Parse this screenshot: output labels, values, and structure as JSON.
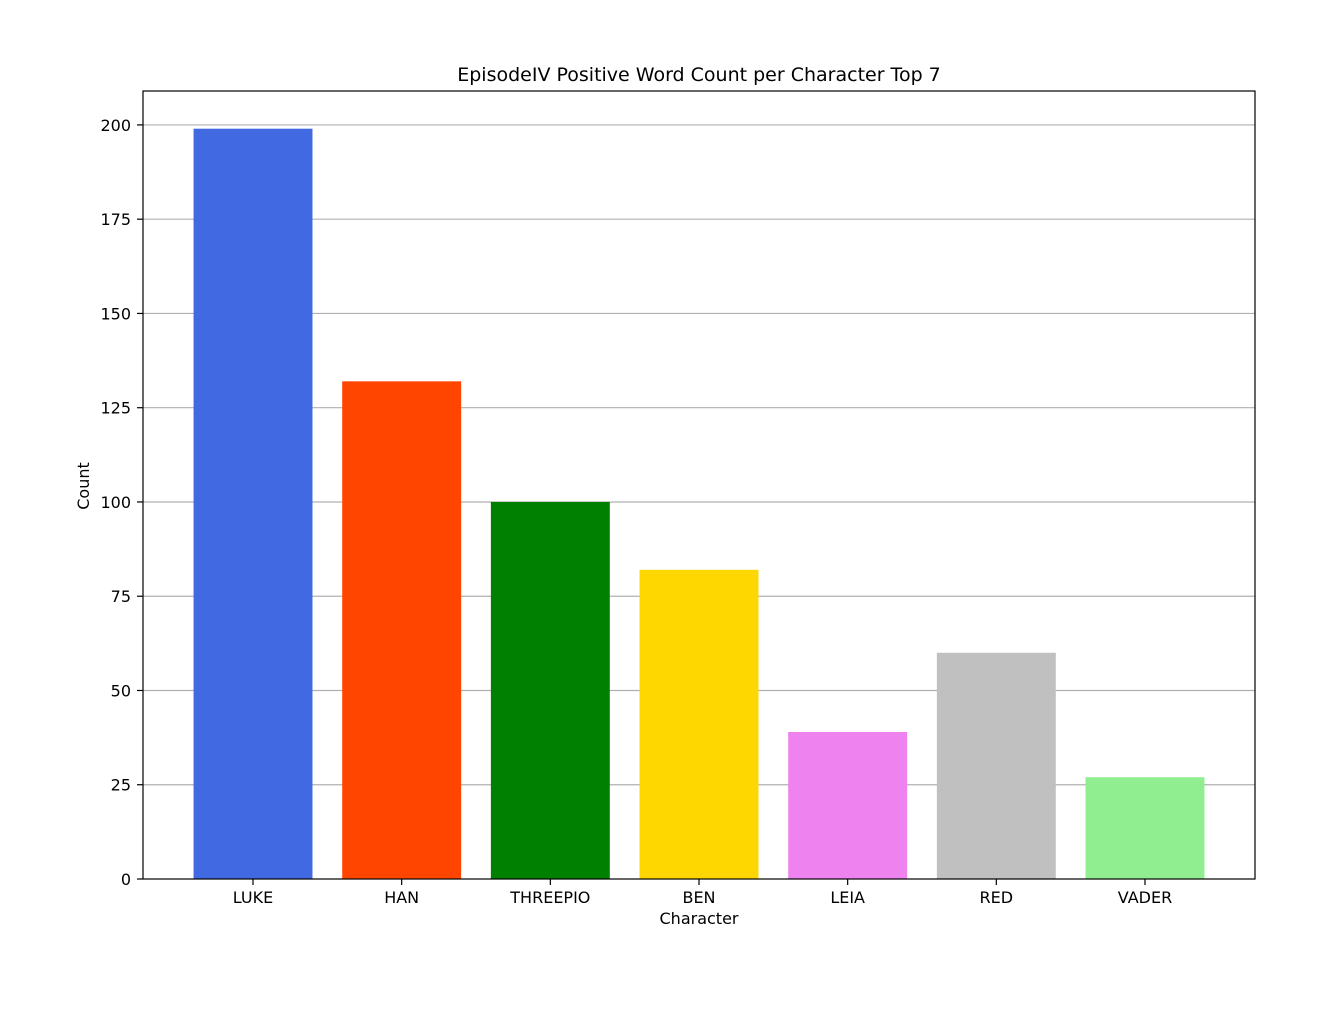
{
  "chart_data": {
    "type": "bar",
    "title": "EpisodeIV Positive Word Count per Character Top 7",
    "xlabel": "Character",
    "ylabel": "Count",
    "categories": [
      "LUKE",
      "HAN",
      "THREEPIO",
      "BEN",
      "LEIA",
      "RED",
      "VADER"
    ],
    "values": [
      199,
      132,
      100,
      82,
      39,
      60,
      27
    ],
    "colors": [
      "#4169e1",
      "#ff4500",
      "#008000",
      "#ffd700",
      "#ee82ee",
      "#c0c0c0",
      "#90ee90"
    ],
    "ylim": [
      0,
      209
    ],
    "yticks": [
      0,
      25,
      50,
      75,
      100,
      125,
      150,
      175,
      200
    ],
    "grid": "y-major",
    "legend": "none"
  }
}
